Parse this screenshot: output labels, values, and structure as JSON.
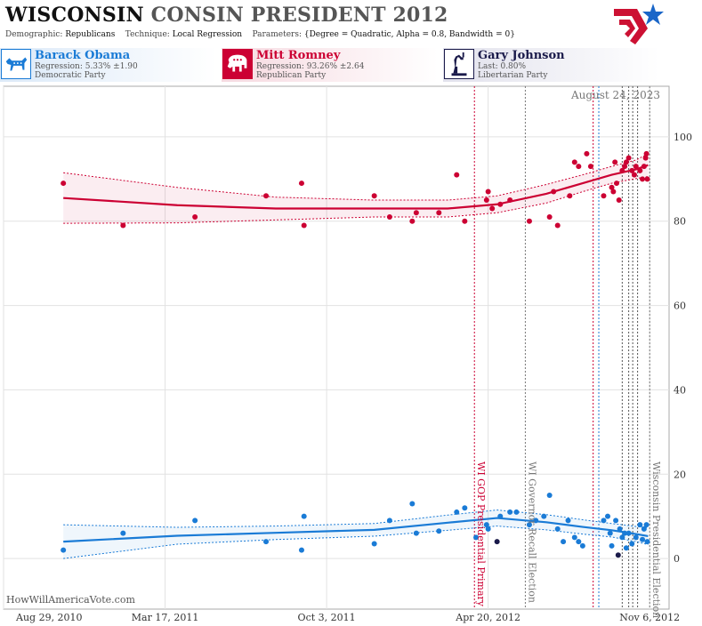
{
  "header": {
    "title_part1": "WISCONSIN",
    "title_part2": "CONSIN PRESIDENT 2012",
    "demographic_label": "Demographic:",
    "demographic_value": "Republicans",
    "technique_label": "Technique:",
    "technique_value": "Local Regression",
    "parameters_label": "Parameters:",
    "parameters_value": "{Degree = Quadratic, Alpha = 0.8, Bandwidth = 0}"
  },
  "candidates": [
    {
      "name": "Barack Obama",
      "line1": "Regression: 5.33% ±1.90",
      "line2": "Democratic Party",
      "color": "#1a7bd6",
      "bg": "#dbe9f8",
      "icon": "donkey-icon"
    },
    {
      "name": "Mitt Romney",
      "line1": "Regression: 93.26% ±2.64",
      "line2": "Republican Party",
      "color": "#cc0033",
      "bg": "#f6d9e0",
      "icon": "elephant-icon"
    },
    {
      "name": "Gary Johnson",
      "line1": "Last: 0.80%",
      "line2": "Libertarian Party",
      "color": "#1a1a4a",
      "bg": "#e1e1ec",
      "icon": "statue-of-liberty-icon"
    }
  ],
  "footer_text": "HowWillAmericaVote.com",
  "chart_data": {
    "type": "scatter",
    "x_domain": [
      "2010-08-29",
      "2012-11-30"
    ],
    "ylim": [
      -12,
      112
    ],
    "y_ticks": [
      0,
      20,
      40,
      60,
      80,
      100
    ],
    "x_ticks": [
      {
        "date": "2010-08-29",
        "label": "Aug 29, 2010"
      },
      {
        "date": "2011-03-17",
        "label": "Mar 17, 2011"
      },
      {
        "date": "2011-10-03",
        "label": "Oct 3, 2011"
      },
      {
        "date": "2012-04-20",
        "label": "Apr 20, 2012"
      },
      {
        "date": "2012-11-06",
        "label": "Nov 6, 2012"
      }
    ],
    "grid": true,
    "date_annotation": "August 24, 2023",
    "events": [
      {
        "date": "2012-04-03",
        "label": "WI GOP Presidential Primary",
        "color": "#cc0033"
      },
      {
        "date": "2012-06-05",
        "label": "WI Governor Recall Election",
        "color": "#777777"
      },
      {
        "date": "2012-08-28",
        "label": "",
        "color": "#cc0033"
      },
      {
        "date": "2012-09-04",
        "label": "",
        "color": "#1a7bd6"
      },
      {
        "date": "2012-10-03",
        "label": "",
        "color": "#555555"
      },
      {
        "date": "2012-10-11",
        "label": "",
        "color": "#555555"
      },
      {
        "date": "2012-10-16",
        "label": "",
        "color": "#555555"
      },
      {
        "date": "2012-10-22",
        "label": "",
        "color": "#555555"
      },
      {
        "date": "2012-11-06",
        "label": "Wisconsin Presidential Election",
        "color": "#777777"
      }
    ],
    "series": [
      {
        "name": "Mitt Romney",
        "color": "#cc0033",
        "points": [
          [
            "2010-11-11",
            89
          ],
          [
            "2011-01-24",
            79
          ],
          [
            "2011-04-23",
            81
          ],
          [
            "2011-07-20",
            86
          ],
          [
            "2011-09-02",
            89
          ],
          [
            "2011-09-05",
            79
          ],
          [
            "2011-12-01",
            86
          ],
          [
            "2011-12-20",
            81
          ],
          [
            "2012-01-17",
            80
          ],
          [
            "2012-01-22",
            82
          ],
          [
            "2012-02-19",
            82
          ],
          [
            "2012-03-12",
            91
          ],
          [
            "2012-03-22",
            80
          ],
          [
            "2012-04-18",
            85
          ],
          [
            "2012-04-20",
            87
          ],
          [
            "2012-04-25",
            83
          ],
          [
            "2012-05-05",
            84
          ],
          [
            "2012-05-17",
            85
          ],
          [
            "2012-06-10",
            80
          ],
          [
            "2012-07-05",
            81
          ],
          [
            "2012-07-10",
            87
          ],
          [
            "2012-07-15",
            79
          ],
          [
            "2012-07-30",
            86
          ],
          [
            "2012-08-05",
            94
          ],
          [
            "2012-08-10",
            93
          ],
          [
            "2012-08-20",
            96
          ],
          [
            "2012-08-25",
            93
          ],
          [
            "2012-09-10",
            86
          ],
          [
            "2012-09-20",
            88
          ],
          [
            "2012-09-22",
            87
          ],
          [
            "2012-09-24",
            94
          ],
          [
            "2012-09-26",
            89
          ],
          [
            "2012-09-29",
            85
          ],
          [
            "2012-10-03",
            92
          ],
          [
            "2012-10-06",
            93
          ],
          [
            "2012-10-08",
            94
          ],
          [
            "2012-10-11",
            95
          ],
          [
            "2012-10-15",
            92
          ],
          [
            "2012-10-18",
            91
          ],
          [
            "2012-10-20",
            93
          ],
          [
            "2012-10-25",
            92
          ],
          [
            "2012-10-28",
            90
          ],
          [
            "2012-10-30",
            93
          ],
          [
            "2012-11-01",
            95
          ],
          [
            "2012-11-02",
            96
          ],
          [
            "2012-11-03",
            90
          ]
        ],
        "trend": [
          [
            "2010-11-11",
            85.5
          ],
          [
            "2011-04-01",
            83.8
          ],
          [
            "2011-08-01",
            83.0
          ],
          [
            "2011-12-01",
            83.0
          ],
          [
            "2012-03-01",
            83.0
          ],
          [
            "2012-05-01",
            84.0
          ],
          [
            "2012-07-01",
            86.5
          ],
          [
            "2012-08-15",
            89.0
          ],
          [
            "2012-09-20",
            91.0
          ],
          [
            "2012-10-20",
            92.3
          ],
          [
            "2012-11-04",
            93.3
          ]
        ],
        "band_upper": [
          [
            "2010-11-11",
            91.5
          ],
          [
            "2011-04-01",
            88.0
          ],
          [
            "2011-08-01",
            85.7
          ],
          [
            "2011-12-01",
            85.0
          ],
          [
            "2012-03-01",
            85.0
          ],
          [
            "2012-05-01",
            86.0
          ],
          [
            "2012-07-01",
            88.7
          ],
          [
            "2012-08-15",
            91.0
          ],
          [
            "2012-09-20",
            93.0
          ],
          [
            "2012-10-20",
            94.5
          ],
          [
            "2012-11-04",
            96.0
          ]
        ],
        "band_lower": [
          [
            "2010-11-11",
            79.5
          ],
          [
            "2011-04-01",
            79.6
          ],
          [
            "2011-08-01",
            80.3
          ],
          [
            "2011-12-01",
            81.0
          ],
          [
            "2012-03-01",
            81.0
          ],
          [
            "2012-05-01",
            82.0
          ],
          [
            "2012-07-01",
            84.3
          ],
          [
            "2012-08-15",
            87.0
          ],
          [
            "2012-09-20",
            89.0
          ],
          [
            "2012-10-20",
            90.1
          ],
          [
            "2012-11-04",
            90.6
          ]
        ]
      },
      {
        "name": "Barack Obama",
        "color": "#1a7bd6",
        "points": [
          [
            "2010-11-11",
            2
          ],
          [
            "2011-01-24",
            6
          ],
          [
            "2011-04-23",
            9
          ],
          [
            "2011-07-20",
            4
          ],
          [
            "2011-09-02",
            2
          ],
          [
            "2011-09-05",
            10
          ],
          [
            "2011-12-01",
            3.5
          ],
          [
            "2011-12-20",
            9
          ],
          [
            "2012-01-17",
            13
          ],
          [
            "2012-01-22",
            6
          ],
          [
            "2012-02-19",
            6.5
          ],
          [
            "2012-03-12",
            11
          ],
          [
            "2012-03-22",
            12
          ],
          [
            "2012-04-05",
            5
          ],
          [
            "2012-04-18",
            8
          ],
          [
            "2012-04-20",
            7
          ],
          [
            "2012-05-05",
            10
          ],
          [
            "2012-05-17",
            11
          ],
          [
            "2012-05-25",
            11
          ],
          [
            "2012-06-10",
            8
          ],
          [
            "2012-06-18",
            9
          ],
          [
            "2012-06-28",
            10
          ],
          [
            "2012-07-05",
            15
          ],
          [
            "2012-07-15",
            7
          ],
          [
            "2012-07-22",
            4
          ],
          [
            "2012-07-28",
            9
          ],
          [
            "2012-08-05",
            5
          ],
          [
            "2012-08-10",
            4
          ],
          [
            "2012-08-15",
            3
          ],
          [
            "2012-09-10",
            9
          ],
          [
            "2012-09-15",
            10
          ],
          [
            "2012-09-18",
            6
          ],
          [
            "2012-09-20",
            3
          ],
          [
            "2012-09-25",
            9
          ],
          [
            "2012-09-30",
            7
          ],
          [
            "2012-10-03",
            5
          ],
          [
            "2012-10-06",
            6
          ],
          [
            "2012-10-08",
            2.5
          ],
          [
            "2012-10-11",
            6
          ],
          [
            "2012-10-15",
            3.5
          ],
          [
            "2012-10-20",
            5
          ],
          [
            "2012-10-25",
            8
          ],
          [
            "2012-10-28",
            4.5
          ],
          [
            "2012-10-30",
            7
          ],
          [
            "2012-11-02",
            8
          ],
          [
            "2012-11-03",
            4
          ]
        ],
        "trend": [
          [
            "2010-11-11",
            4.0
          ],
          [
            "2011-04-01",
            5.4
          ],
          [
            "2011-08-01",
            6.1
          ],
          [
            "2011-12-01",
            6.8
          ],
          [
            "2012-03-01",
            8.5
          ],
          [
            "2012-05-01",
            9.6
          ],
          [
            "2012-07-01",
            8.6
          ],
          [
            "2012-08-15",
            7.5
          ],
          [
            "2012-09-20",
            6.7
          ],
          [
            "2012-10-20",
            5.8
          ],
          [
            "2012-11-04",
            5.3
          ]
        ],
        "band_upper": [
          [
            "2010-11-11",
            8.0
          ],
          [
            "2011-04-01",
            7.4
          ],
          [
            "2011-08-01",
            7.7
          ],
          [
            "2011-12-01",
            8.3
          ],
          [
            "2012-03-01",
            10.3
          ],
          [
            "2012-05-01",
            11.5
          ],
          [
            "2012-07-01",
            10.4
          ],
          [
            "2012-08-15",
            9.2
          ],
          [
            "2012-09-20",
            8.3
          ],
          [
            "2012-10-20",
            7.6
          ],
          [
            "2012-11-04",
            7.3
          ]
        ],
        "band_lower": [
          [
            "2010-11-11",
            0.0
          ],
          [
            "2011-04-01",
            3.4
          ],
          [
            "2011-08-01",
            4.5
          ],
          [
            "2011-12-01",
            5.3
          ],
          [
            "2012-03-01",
            6.7
          ],
          [
            "2012-05-01",
            7.7
          ],
          [
            "2012-07-01",
            6.8
          ],
          [
            "2012-08-15",
            5.8
          ],
          [
            "2012-09-20",
            5.1
          ],
          [
            "2012-10-20",
            4.0
          ],
          [
            "2012-11-04",
            3.3
          ]
        ]
      },
      {
        "name": "Gary Johnson",
        "color": "#1a1a4a",
        "points": [
          [
            "2012-05-01",
            4
          ],
          [
            "2012-09-28",
            0.8
          ]
        ]
      }
    ]
  }
}
